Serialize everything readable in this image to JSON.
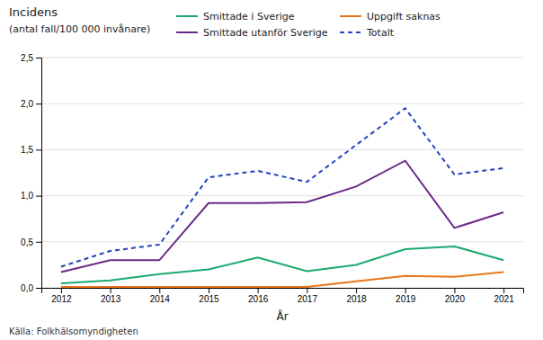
{
  "chart_data": {
    "type": "line",
    "y_label": [
      "Incidens",
      "(antal fall/100 000 invånare)"
    ],
    "x_label": "År",
    "annotations": [
      "Källa: Folkhälsomyndigheten"
    ],
    "x": [
      2012,
      2013,
      2014,
      2015,
      2016,
      2017,
      2018,
      2019,
      2020,
      2021
    ],
    "series": [
      {
        "name": "Smittade i Sverige",
        "color": "#1aaa6e",
        "line_style": "solid",
        "values": [
          0.05,
          0.08,
          0.15,
          0.2,
          0.33,
          0.18,
          0.25,
          0.42,
          0.45,
          0.3
        ]
      },
      {
        "name": "Smittade utanför Sverige",
        "color": "#6b2a8a",
        "line_style": "solid",
        "values": [
          0.17,
          0.3,
          0.3,
          0.92,
          0.92,
          0.93,
          1.1,
          1.38,
          0.65,
          0.82
        ]
      },
      {
        "name": "Uppgift saknas",
        "color": "#e8761a",
        "line_style": "solid",
        "values": [
          0.01,
          0.01,
          0.01,
          0.01,
          0.01,
          0.01,
          0.07,
          0.13,
          0.12,
          0.17
        ]
      },
      {
        "name": "Totalt",
        "color": "#2244bb",
        "line_style": "dashed",
        "values": [
          0.23,
          0.4,
          0.47,
          1.2,
          1.27,
          1.15,
          1.55,
          1.95,
          1.23,
          1.3
        ]
      }
    ],
    "xlim": [
      2011.6,
      2021.4
    ],
    "xticks": [
      2012,
      2013,
      2014,
      2015,
      2016,
      2017,
      2018,
      2019,
      2020,
      2021
    ],
    "ylim": [
      0,
      2.5
    ],
    "yticks": [
      {
        "value": 0.0,
        "label": "0,0"
      },
      {
        "value": 0.5,
        "label": "0,5"
      },
      {
        "value": 1.0,
        "label": "1,0"
      },
      {
        "value": 1.5,
        "label": "1,5"
      },
      {
        "value": 2.0,
        "label": "2,0"
      },
      {
        "value": 2.5,
        "label": "2,5"
      }
    ],
    "grid": true,
    "legend": "top"
  }
}
